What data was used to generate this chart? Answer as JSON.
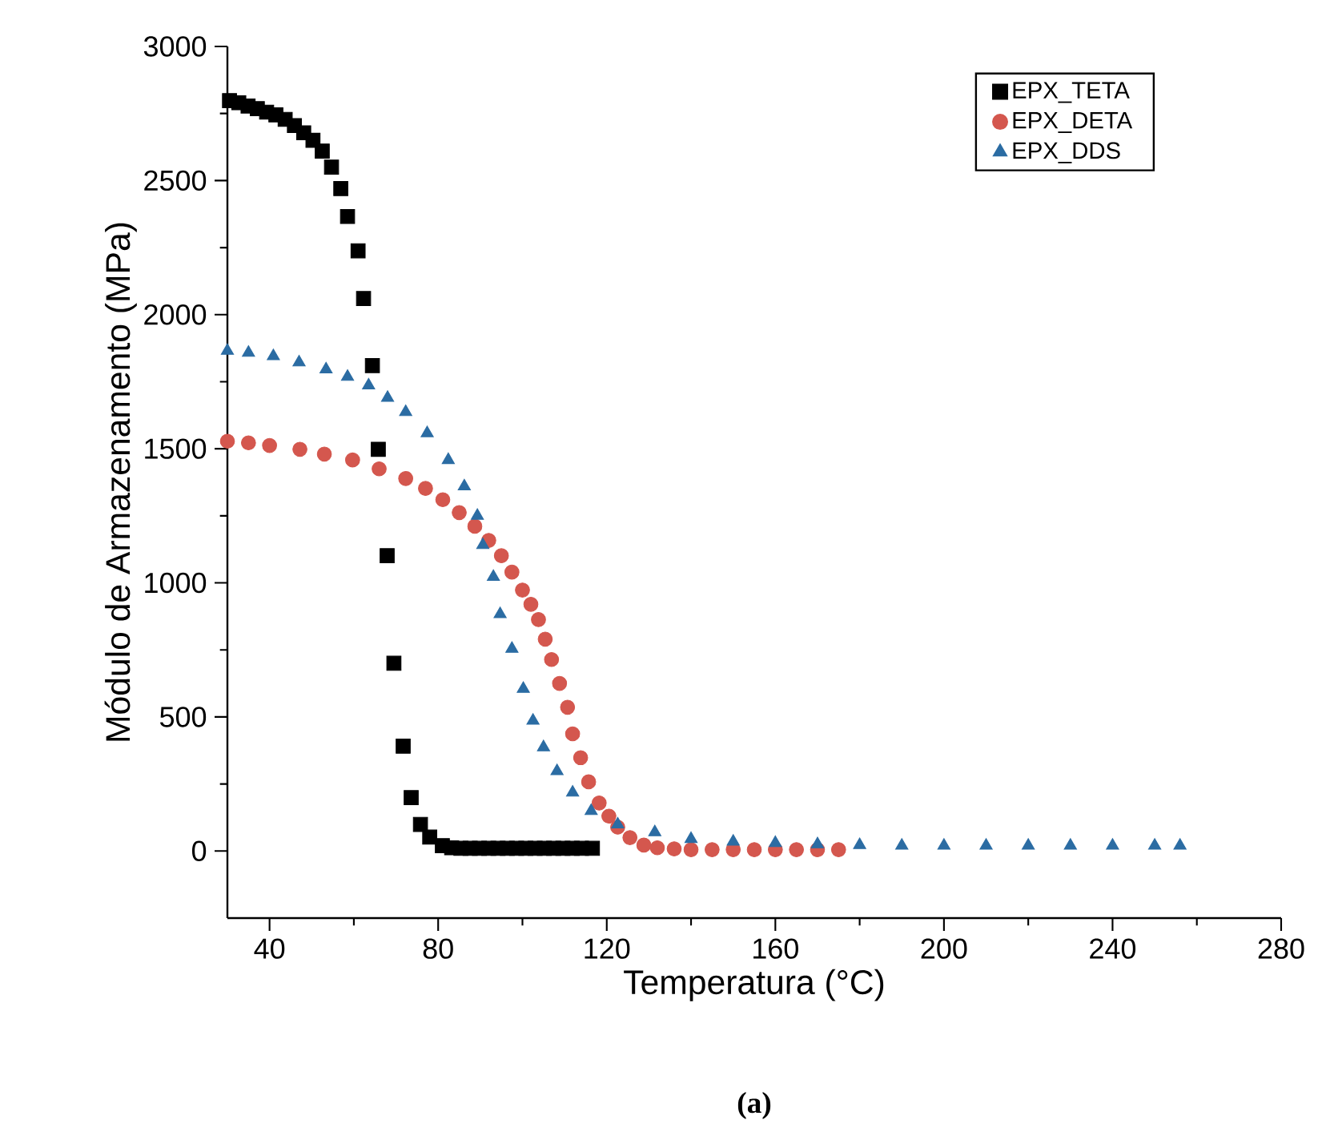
{
  "chart_data": {
    "type": "scatter",
    "xlabel": "Temperatura (°C)",
    "ylabel": "Módulo de Armazenamento (MPa)",
    "annotations": [
      "(a)"
    ],
    "xlim": [
      30,
      280
    ],
    "ylim": [
      -250,
      3000
    ],
    "xticks": [
      40,
      80,
      120,
      160,
      200,
      240,
      280
    ],
    "yticks": [
      0,
      500,
      1000,
      1500,
      2000,
      2500,
      3000
    ],
    "legend": "top right",
    "grid": false,
    "series": [
      {
        "name": "EPX_TETA",
        "color": "#000000",
        "marker": "square",
        "x": [
          30.5,
          32.7,
          34.9,
          37.1,
          39.3,
          41.5,
          43.7,
          45.9,
          48.1,
          50.3,
          52.5,
          54.7,
          56.9,
          58.5,
          61,
          62.3,
          64.4,
          65.8,
          67.9,
          69.5,
          71.7,
          73.6,
          75.8,
          78,
          81,
          83.2,
          85.4,
          87.6,
          89.8,
          92,
          94.2,
          96.4,
          98.6,
          100.8,
          103,
          105.2,
          107.4,
          109.6,
          111.8,
          114,
          116.6
        ],
        "values": [
          2798,
          2790,
          2778,
          2768,
          2755,
          2745,
          2728,
          2705,
          2678,
          2650,
          2610,
          2550,
          2470,
          2366,
          2238,
          2060,
          1810,
          1498,
          1101,
          700,
          391,
          199,
          99,
          52,
          20,
          12,
          10,
          10,
          10,
          10,
          10,
          10,
          10,
          10,
          10,
          10,
          10,
          10,
          10,
          10,
          10
        ]
      },
      {
        "name": "EPX_DETA",
        "color": "#d4574e",
        "marker": "circle",
        "x": [
          30,
          35,
          40,
          47.2,
          53,
          59.7,
          66,
          72.3,
          77,
          81.1,
          85,
          88.7,
          92,
          95,
          97.5,
          100,
          102,
          103.8,
          105.4,
          106.9,
          108.8,
          110.7,
          111.9,
          113.8,
          115.7,
          118.2,
          120.5,
          122.6,
          125.5,
          128.8,
          132,
          136,
          140,
          145,
          150,
          155,
          160,
          165,
          170,
          175
        ],
        "values": [
          1528,
          1522,
          1512,
          1498,
          1480,
          1458,
          1425,
          1389,
          1352,
          1310,
          1262,
          1211,
          1158,
          1101,
          1040,
          973,
          920,
          863,
          790,
          714,
          625,
          536,
          437,
          348,
          258,
          179,
          130,
          89,
          50,
          22,
          12,
          8,
          5,
          5,
          5,
          5,
          5,
          5,
          5,
          5
        ]
      },
      {
        "name": "EPX_DDS",
        "color": "#2b6ca3",
        "marker": "triangle",
        "x": [
          30,
          35,
          40.9,
          47,
          53.4,
          58.5,
          63.5,
          68,
          72.3,
          77.4,
          82.4,
          86.2,
          89.3,
          90.6,
          93.1,
          94.7,
          97.5,
          100.2,
          102.5,
          105,
          108.2,
          111.9,
          116.3,
          122.6,
          131.4,
          140,
          150,
          160,
          170,
          180,
          190,
          200,
          210,
          220,
          230,
          240,
          250,
          256
        ],
        "values": [
          1865,
          1858,
          1845,
          1822,
          1796,
          1768,
          1736,
          1690,
          1637,
          1558,
          1458,
          1360,
          1250,
          1141,
          1022,
          883,
          754,
          605,
          486,
          387,
          298,
          218,
          149,
          99,
          70,
          45,
          35,
          30,
          25,
          22,
          20,
          20,
          20,
          20,
          20,
          20,
          20,
          20
        ]
      }
    ]
  }
}
